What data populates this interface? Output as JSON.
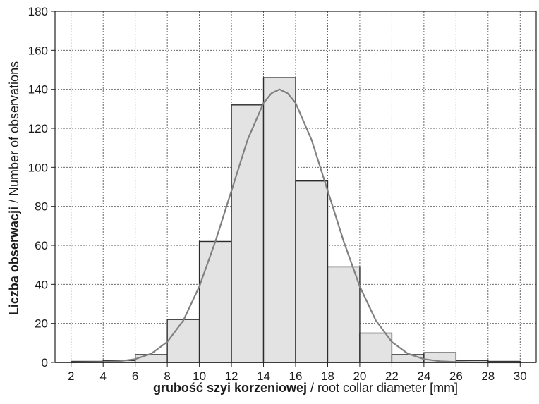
{
  "chart_data": {
    "type": "bar",
    "variant": "histogram-with-fitted-curve",
    "bins": [
      {
        "from": 2,
        "to": 4,
        "count": 0
      },
      {
        "from": 4,
        "to": 6,
        "count": 1
      },
      {
        "from": 6,
        "to": 8,
        "count": 4
      },
      {
        "from": 8,
        "to": 10,
        "count": 22
      },
      {
        "from": 10,
        "to": 12,
        "count": 62
      },
      {
        "from": 12,
        "to": 14,
        "count": 132
      },
      {
        "from": 14,
        "to": 16,
        "count": 146
      },
      {
        "from": 16,
        "to": 18,
        "count": 93
      },
      {
        "from": 18,
        "to": 20,
        "count": 49
      },
      {
        "from": 20,
        "to": 22,
        "count": 15
      },
      {
        "from": 22,
        "to": 24,
        "count": 4
      },
      {
        "from": 24,
        "to": 26,
        "count": 5
      },
      {
        "from": 26,
        "to": 28,
        "count": 1
      },
      {
        "from": 28,
        "to": 30,
        "count": 0
      }
    ],
    "fit_curve": {
      "type": "normal",
      "x": [
        2,
        4,
        5,
        6,
        7,
        8,
        9,
        10,
        11,
        12,
        13,
        14,
        14.5,
        15,
        15.5,
        16,
        17,
        18,
        19,
        20,
        21,
        22,
        23,
        24,
        25,
        26,
        27,
        28,
        30
      ],
      "y": [
        0,
        0.2,
        0.6,
        1.7,
        4.5,
        10.5,
        21.5,
        39,
        62,
        88,
        114,
        133,
        138,
        140,
        138,
        133,
        114,
        88,
        62,
        39,
        21.5,
        10.5,
        4.5,
        1.7,
        0.6,
        0.2,
        0.05,
        0,
        0
      ]
    },
    "x_ticks": [
      2,
      4,
      6,
      8,
      10,
      12,
      14,
      16,
      18,
      20,
      22,
      24,
      26,
      28,
      30
    ],
    "y_ticks": [
      0,
      20,
      40,
      60,
      80,
      100,
      120,
      140,
      160,
      180
    ],
    "xlim": [
      1,
      31
    ],
    "ylim": [
      0,
      180
    ],
    "grid": true,
    "xlabel_bold": "grubość szyi korzeniowej",
    "xlabel_rest": " / root collar diameter [mm]",
    "ylabel_bold": "Liczba obserwacji",
    "ylabel_rest": " / Number of observations",
    "colors": {
      "bar_fill": "#e3e3e3",
      "bar_stroke": "#2b2b2b",
      "curve": "#808080",
      "grid": "#555555",
      "axis": "#222222"
    }
  }
}
